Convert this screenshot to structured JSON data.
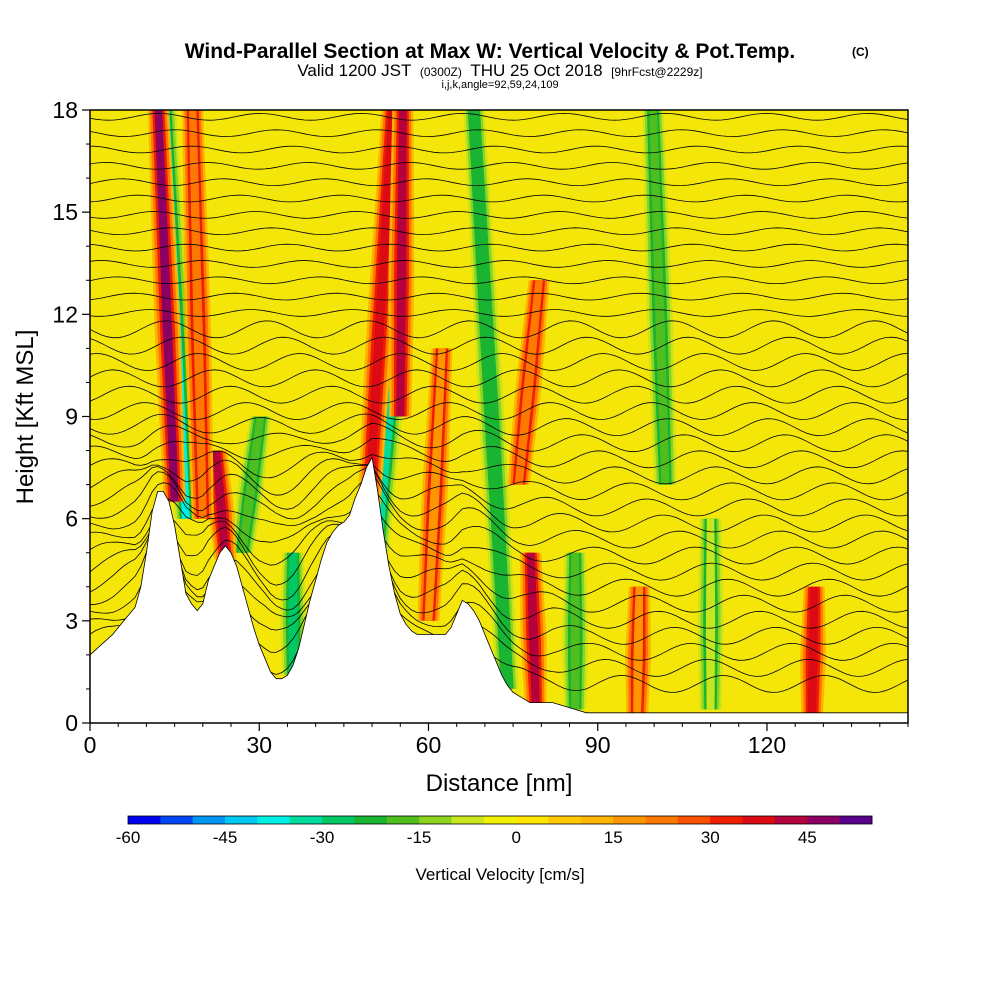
{
  "header": {
    "title": "Wind-Parallel Section at Max W: Vertical Velocity & Pot.Temp.",
    "copyright": "(C)",
    "valid_prefix": "Valid 1200 JST",
    "valid_utc": "(0300Z)",
    "valid_date": "THU 25 Oct 2018",
    "forecast": "[9hrFcst@2229z]",
    "indices": "i,j,k,angle=92,59,24,109"
  },
  "chart_data": {
    "type": "heatmap",
    "xlabel": "Distance [nm]",
    "ylabel": "Height [Kft MSL]",
    "xlim": [
      0,
      145
    ],
    "ylim": [
      0,
      18
    ],
    "x_ticks": [
      0,
      30,
      60,
      90,
      120
    ],
    "y_ticks": [
      0,
      3,
      6,
      9,
      12,
      15,
      18
    ],
    "colorbar": {
      "title": "Vertical Velocity [cm/s]",
      "min": -60,
      "max": 50,
      "step": 5,
      "tick_values": [
        -60,
        -45,
        -30,
        -15,
        0,
        15,
        30,
        45
      ],
      "tick_labels": [
        "-60",
        "-45",
        "-30",
        "-15",
        "0",
        "15",
        "30",
        "45"
      ],
      "colors": [
        "#0000f0",
        "#0046f5",
        "#0096f5",
        "#00c8f0",
        "#00f0e6",
        "#00dca0",
        "#00c864",
        "#19b432",
        "#50be1e",
        "#8cd21e",
        "#c8e61e",
        "#f0f000",
        "#ffe600",
        "#ffc800",
        "#ffb400",
        "#ff9600",
        "#ff7800",
        "#ff5000",
        "#f01e00",
        "#dc0a14",
        "#b4003c",
        "#8c0064",
        "#5a008c"
      ]
    },
    "terrain_profile": [
      [
        0,
        2.0
      ],
      [
        2,
        2.3
      ],
      [
        4,
        2.6
      ],
      [
        6,
        3.0
      ],
      [
        8,
        3.4
      ],
      [
        9,
        4.0
      ],
      [
        10,
        5.0
      ],
      [
        11,
        6.2
      ],
      [
        12,
        6.8
      ],
      [
        13,
        6.8
      ],
      [
        14,
        6.5
      ],
      [
        15,
        5.8
      ],
      [
        16,
        4.8
      ],
      [
        17,
        3.8
      ],
      [
        18,
        3.5
      ],
      [
        19,
        3.3
      ],
      [
        20,
        3.5
      ],
      [
        21,
        4.2
      ],
      [
        22,
        4.6
      ],
      [
        23,
        5.0
      ],
      [
        24,
        5.2
      ],
      [
        25,
        5.0
      ],
      [
        26,
        4.6
      ],
      [
        27,
        4.0
      ],
      [
        28,
        3.4
      ],
      [
        29,
        2.8
      ],
      [
        30,
        2.3
      ],
      [
        31,
        1.9
      ],
      [
        32,
        1.5
      ],
      [
        33,
        1.3
      ],
      [
        34,
        1.3
      ],
      [
        35,
        1.4
      ],
      [
        36,
        1.7
      ],
      [
        37,
        2.2
      ],
      [
        38,
        2.9
      ],
      [
        39,
        3.6
      ],
      [
        40,
        4.2
      ],
      [
        41,
        4.8
      ],
      [
        42,
        5.3
      ],
      [
        43,
        5.6
      ],
      [
        44,
        5.8
      ],
      [
        45,
        5.9
      ],
      [
        46,
        6.1
      ],
      [
        47,
        6.6
      ],
      [
        48,
        7.0
      ],
      [
        49,
        7.5
      ],
      [
        50,
        7.8
      ],
      [
        51,
        6.8
      ],
      [
        52,
        5.6
      ],
      [
        53,
        4.6
      ],
      [
        54,
        3.8
      ],
      [
        55,
        3.2
      ],
      [
        56,
        2.9
      ],
      [
        57,
        2.7
      ],
      [
        58,
        2.6
      ],
      [
        59,
        2.6
      ],
      [
        60,
        2.6
      ],
      [
        61,
        2.6
      ],
      [
        62,
        2.6
      ],
      [
        63,
        2.6
      ],
      [
        64,
        2.8
      ],
      [
        65,
        3.2
      ],
      [
        66,
        3.6
      ],
      [
        67,
        3.5
      ],
      [
        68,
        3.3
      ],
      [
        69,
        3.0
      ],
      [
        70,
        2.6
      ],
      [
        71,
        2.2
      ],
      [
        72,
        1.8
      ],
      [
        73,
        1.4
      ],
      [
        74,
        1.1
      ],
      [
        75,
        0.9
      ],
      [
        76,
        0.8
      ],
      [
        77,
        0.7
      ],
      [
        78,
        0.6
      ],
      [
        79,
        0.6
      ],
      [
        80,
        0.6
      ],
      [
        82,
        0.6
      ],
      [
        84,
        0.5
      ],
      [
        86,
        0.4
      ],
      [
        88,
        0.3
      ],
      [
        90,
        0.3
      ],
      [
        100,
        0.3
      ],
      [
        110,
        0.3
      ],
      [
        120,
        0.3
      ],
      [
        130,
        0.3
      ],
      [
        145,
        0.3
      ]
    ],
    "updraft_columns": [
      {
        "x": 15,
        "base": 6.5,
        "top": 18,
        "lean": -0.25,
        "w": 45
      },
      {
        "x": 24,
        "base": 4.8,
        "top": 8,
        "lean": -0.5,
        "w": 40
      },
      {
        "x": 49,
        "base": 5.0,
        "top": 18,
        "lean": 0.35,
        "w": 38
      },
      {
        "x": 55,
        "base": 9,
        "top": 18,
        "lean": 0.05,
        "w": 40
      },
      {
        "x": 79,
        "base": 0.6,
        "top": 5,
        "lean": -0.2,
        "w": 42
      },
      {
        "x": 76,
        "base": 7,
        "top": 13,
        "lean": 0.6,
        "w": 20
      },
      {
        "x": 128,
        "base": 0.3,
        "top": 4,
        "lean": 0.1,
        "w": 35
      },
      {
        "x": 97,
        "base": 0.3,
        "top": 4,
        "lean": 0.1,
        "w": 15
      },
      {
        "x": 20,
        "base": 6,
        "top": 18,
        "lean": -0.15,
        "w": 22
      },
      {
        "x": 60,
        "base": 3,
        "top": 11,
        "lean": 0.3,
        "w": 15
      }
    ],
    "downdraft_columns": [
      {
        "x": 17,
        "base": 6.0,
        "top": 18,
        "lean": -0.3,
        "w": -38
      },
      {
        "x": 36,
        "base": 1.4,
        "top": 5,
        "lean": 0.0,
        "w": -30
      },
      {
        "x": 51,
        "base": 5.0,
        "top": 13,
        "lean": 0.5,
        "w": -35
      },
      {
        "x": 74,
        "base": 1,
        "top": 18,
        "lean": -0.35,
        "w": -22
      },
      {
        "x": 102,
        "base": 7,
        "top": 18,
        "lean": -0.2,
        "w": -20
      },
      {
        "x": 86,
        "base": 0.4,
        "top": 5,
        "lean": 0.0,
        "w": -18
      },
      {
        "x": 27,
        "base": 5,
        "top": 9,
        "lean": 0.8,
        "w": -20
      },
      {
        "x": 110,
        "base": 0.4,
        "top": 6,
        "lean": 0.0,
        "w": -10
      }
    ]
  }
}
